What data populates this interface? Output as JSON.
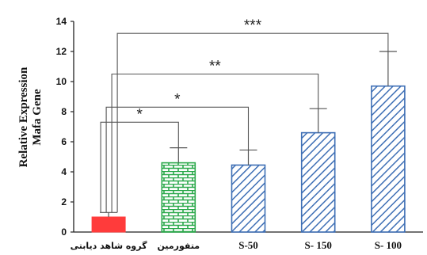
{
  "chart_data": {
    "type": "bar",
    "categories": [
      "گروه شاهد دیابتی",
      "متفورمین",
      "S-50",
      "S- 150",
      "S- 100"
    ],
    "values": [
      1.0,
      4.6,
      4.45,
      6.6,
      9.7
    ],
    "errors": [
      0.3,
      1.0,
      1.0,
      1.6,
      2.3
    ],
    "ylabel": [
      "Relative Expression",
      "Mafa Gene"
    ],
    "ylim": [
      0,
      14
    ],
    "yticks": [
      0,
      2,
      4,
      6,
      8,
      10,
      12,
      14
    ],
    "grid": false,
    "bar_colors": [
      "#ff3b3b",
      "#2aa84a",
      "#3e6fb5",
      "#3e6fb5",
      "#3e6fb5"
    ],
    "bar_patterns": [
      "solid",
      "brick",
      "diagonal",
      "diagonal",
      "diagonal"
    ],
    "significance": [
      {
        "label": "*",
        "target": 1,
        "y": 7.3
      },
      {
        "label": "*",
        "target": 2,
        "y": 8.3
      },
      {
        "label": "**",
        "target": 3,
        "y": 10.5
      },
      {
        "label": "***",
        "target": 4,
        "y": 13.2
      }
    ]
  }
}
